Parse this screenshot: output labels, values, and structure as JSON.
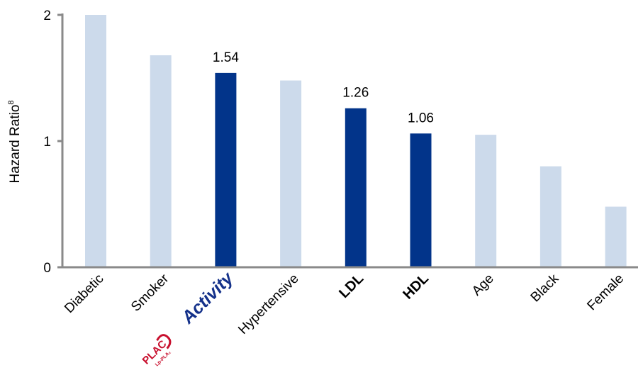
{
  "chart_data": {
    "type": "bar",
    "title": "",
    "xlabel": "",
    "ylabel": "Hazard Ratio",
    "ylabel_superscript": "8",
    "ylim": [
      0,
      2
    ],
    "yticks": [
      0,
      1,
      2
    ],
    "grid": false,
    "categories": [
      "Diabetic",
      "Smoker",
      "Activity",
      "Hypertensive",
      "LDL",
      "HDL",
      "Age",
      "Black",
      "Female"
    ],
    "values": [
      2.0,
      1.68,
      1.54,
      1.48,
      1.26,
      1.06,
      1.05,
      0.8,
      0.48
    ],
    "highlighted": [
      false,
      false,
      true,
      false,
      true,
      true,
      false,
      false,
      false
    ],
    "data_labels": [
      "",
      "",
      "1.54",
      "",
      "1.26",
      "1.06",
      "",
      "",
      ""
    ],
    "bold_categories": [
      false,
      false,
      true,
      false,
      true,
      true,
      false,
      false,
      false
    ],
    "brand_logo_text": "PLAC",
    "brand_logo_subtext": "Lp-PLA₂",
    "colors": {
      "highlight": "#02348a",
      "normal": "#ccdaeb",
      "axis": "#8a8a8a",
      "brand": "#14318a",
      "logo": "#c8102e"
    }
  }
}
